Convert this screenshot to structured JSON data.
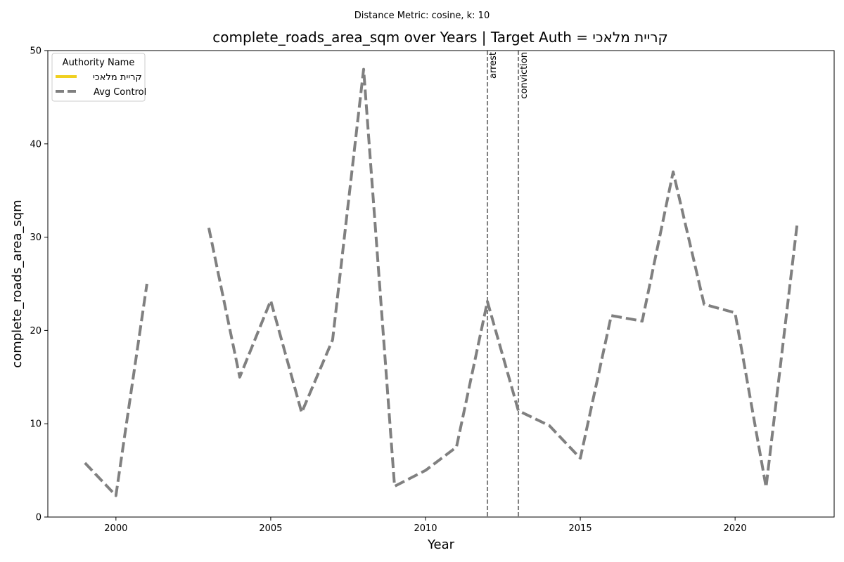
{
  "chart_data": {
    "type": "line",
    "suptitle": "Distance Metric: cosine, k: 10",
    "title": "complete_roads_area_sqm over Years | Target Auth = קריית מלאכי",
    "xlabel": "Year",
    "ylabel": "complete_roads_area_sqm",
    "xlim": [
      1997.8,
      2023.2
    ],
    "ylim": [
      0,
      50
    ],
    "x_ticks": [
      2000,
      2005,
      2010,
      2015,
      2020
    ],
    "y_ticks": [
      0,
      10,
      20,
      30,
      40,
      50
    ],
    "grid": false,
    "legend": {
      "title": "Authority Name",
      "placement": "top-left"
    },
    "series": [
      {
        "name": "קריית מלאכי",
        "color": "#f0d020",
        "style": "solid",
        "points": []
      },
      {
        "name": "Avg Control",
        "color": "#808080",
        "style": "dashed",
        "segments": [
          [
            [
              1999,
              5.8
            ],
            [
              2000,
              2.3
            ],
            [
              2001,
              25.0
            ]
          ],
          [
            [
              2003,
              31.0
            ],
            [
              2004,
              15.0
            ],
            [
              2005,
              23.2
            ],
            [
              2006,
              11.2
            ],
            [
              2007,
              19.0
            ],
            [
              2008,
              48.0
            ],
            [
              2009,
              3.3
            ],
            [
              2010,
              5.0
            ],
            [
              2011,
              7.5
            ],
            [
              2012,
              23.1
            ],
            [
              2013,
              11.4
            ],
            [
              2014,
              9.8
            ],
            [
              2015,
              6.3
            ],
            [
              2016,
              21.6
            ],
            [
              2017,
              21.0
            ],
            [
              2018,
              37.0
            ],
            [
              2019,
              22.8
            ],
            [
              2020,
              21.9
            ],
            [
              2021,
              3.2
            ],
            [
              2022,
              31.3
            ]
          ]
        ]
      }
    ],
    "events": [
      {
        "label": "arrest",
        "x": 2012
      },
      {
        "label": "conviction",
        "x": 2013
      }
    ]
  }
}
